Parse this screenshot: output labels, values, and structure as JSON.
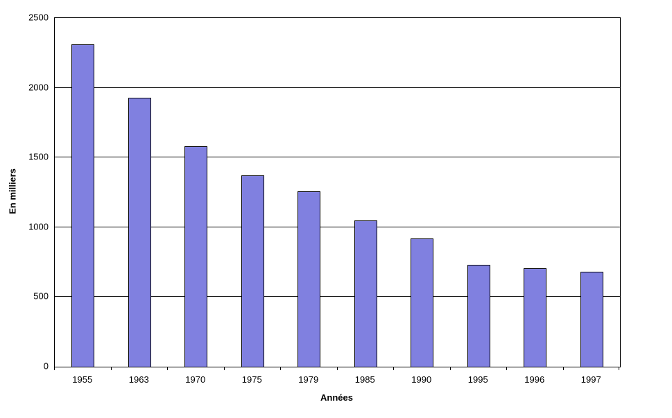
{
  "chart_data": {
    "type": "bar",
    "categories": [
      "1955",
      "1963",
      "1970",
      "1975",
      "1979",
      "1985",
      "1990",
      "1995",
      "1996",
      "1997"
    ],
    "values": [
      2310,
      1930,
      1580,
      1370,
      1260,
      1050,
      920,
      730,
      705,
      680
    ],
    "title": "",
    "xlabel": "Années",
    "ylabel": "En milliers",
    "ylim": [
      0,
      2500
    ],
    "yticks": [
      0,
      500,
      1000,
      1500,
      2000,
      2500
    ],
    "grid": true,
    "legend": false,
    "bar_color": "#8080E0",
    "bar_border_color": "#000000",
    "gridline_color": "#000000"
  }
}
